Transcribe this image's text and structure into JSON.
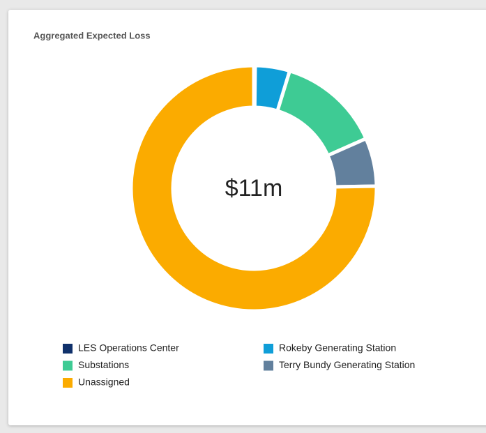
{
  "chart_data": {
    "type": "donut",
    "title": "Aggregated Expected Loss",
    "center_label": "$11m",
    "categories": [
      "LES Operations Center",
      "Rokeby Generating Station",
      "Substations",
      "Terry Bundy Generating Station",
      "Unassigned"
    ],
    "values": [
      0.02,
      0.5,
      1.5,
      0.7,
      8.28
    ],
    "colors": [
      "#10316b",
      "#0f9ed8",
      "#3ecb94",
      "#62809d",
      "#fbab00"
    ]
  }
}
